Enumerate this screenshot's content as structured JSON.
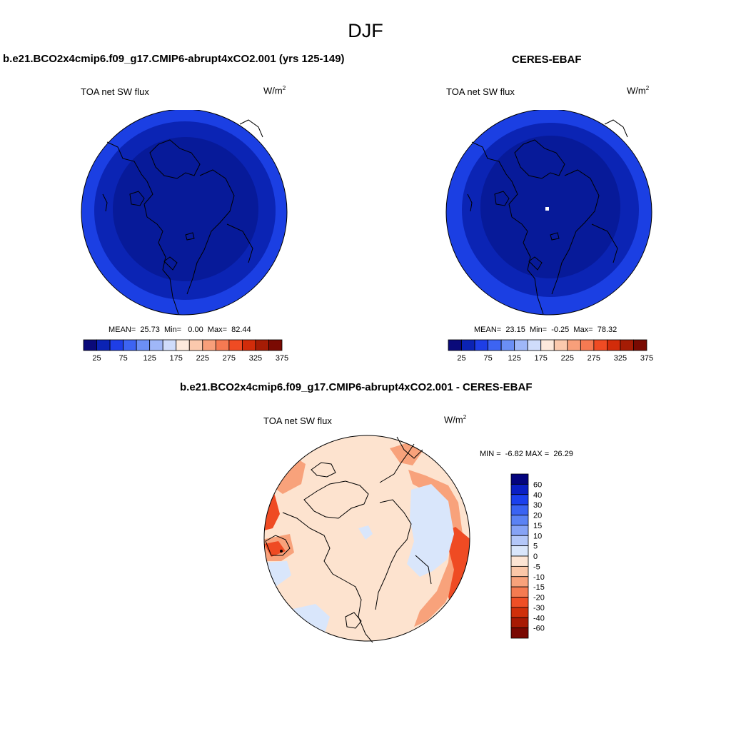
{
  "season": "DJF",
  "panels": {
    "model": {
      "title": "b.e21.BCO2x4cmip6.f09_g17.CMIP6-abrupt4xCO2.001 (yrs 125-149)",
      "var_label": "TOA net SW flux",
      "units": "W/m",
      "units_exp": "2",
      "stats": "MEAN=  25.73  Min=   0.00  Max=  82.44"
    },
    "obs": {
      "title": "CERES-EBAF",
      "var_label": "TOA net SW flux",
      "units": "W/m",
      "units_exp": "2",
      "stats": "MEAN=  23.15  Min=  -0.25  Max=  78.32"
    },
    "diff": {
      "title": "b.e21.BCO2x4cmip6.f09_g17.CMIP6-abrupt4xCO2.001 - CERES-EBAF",
      "var_label": "TOA net SW flux",
      "units": "W/m",
      "units_exp": "2",
      "stats": "MIN =  -6.82 MAX =  26.29"
    }
  },
  "colorbar_abs": {
    "colors": [
      "#0a0a7a",
      "#0b23b4",
      "#1e3ee6",
      "#3d64f2",
      "#6b8ff5",
      "#9fb7f8",
      "#cfdcfb",
      "#fde9dc",
      "#fbc9ad",
      "#f89f7a",
      "#f57a52",
      "#ef4b23",
      "#d22c0a",
      "#a51c05",
      "#7a0a02"
    ],
    "tick_labels": [
      "25",
      "75",
      "125",
      "175",
      "225",
      "275",
      "325",
      "375"
    ]
  },
  "colorbar_diff": {
    "colors": [
      "#04047e",
      "#0a1fc4",
      "#1b40ee",
      "#3a63f3",
      "#5b82f4",
      "#86a3f6",
      "#b3c7f9",
      "#d9e6fb",
      "#fde5d4",
      "#fbc7a8",
      "#f8a27b",
      "#f57b51",
      "#ef4f26",
      "#d0300b",
      "#a81a04",
      "#7a0802"
    ],
    "tick_labels": [
      "60",
      "40",
      "30",
      "20",
      "15",
      "10",
      "5",
      "0",
      "-5",
      "-10",
      "-15",
      "-20",
      "-30",
      "-40",
      "-60"
    ]
  },
  "map_colors": {
    "model_ring_outer": "#1b3fe3",
    "model_ring_mid": "#0b24b4",
    "model_core": "#071a99",
    "obs_ring_outer": "#1b3fe3",
    "obs_ring_mid": "#0b24b4",
    "obs_core": "#071a99",
    "diff_base": "#fde3cf",
    "diff_warm": "#f8a27b",
    "diff_hot": "#ef4b23",
    "diff_cool": "#d9e6fb"
  }
}
